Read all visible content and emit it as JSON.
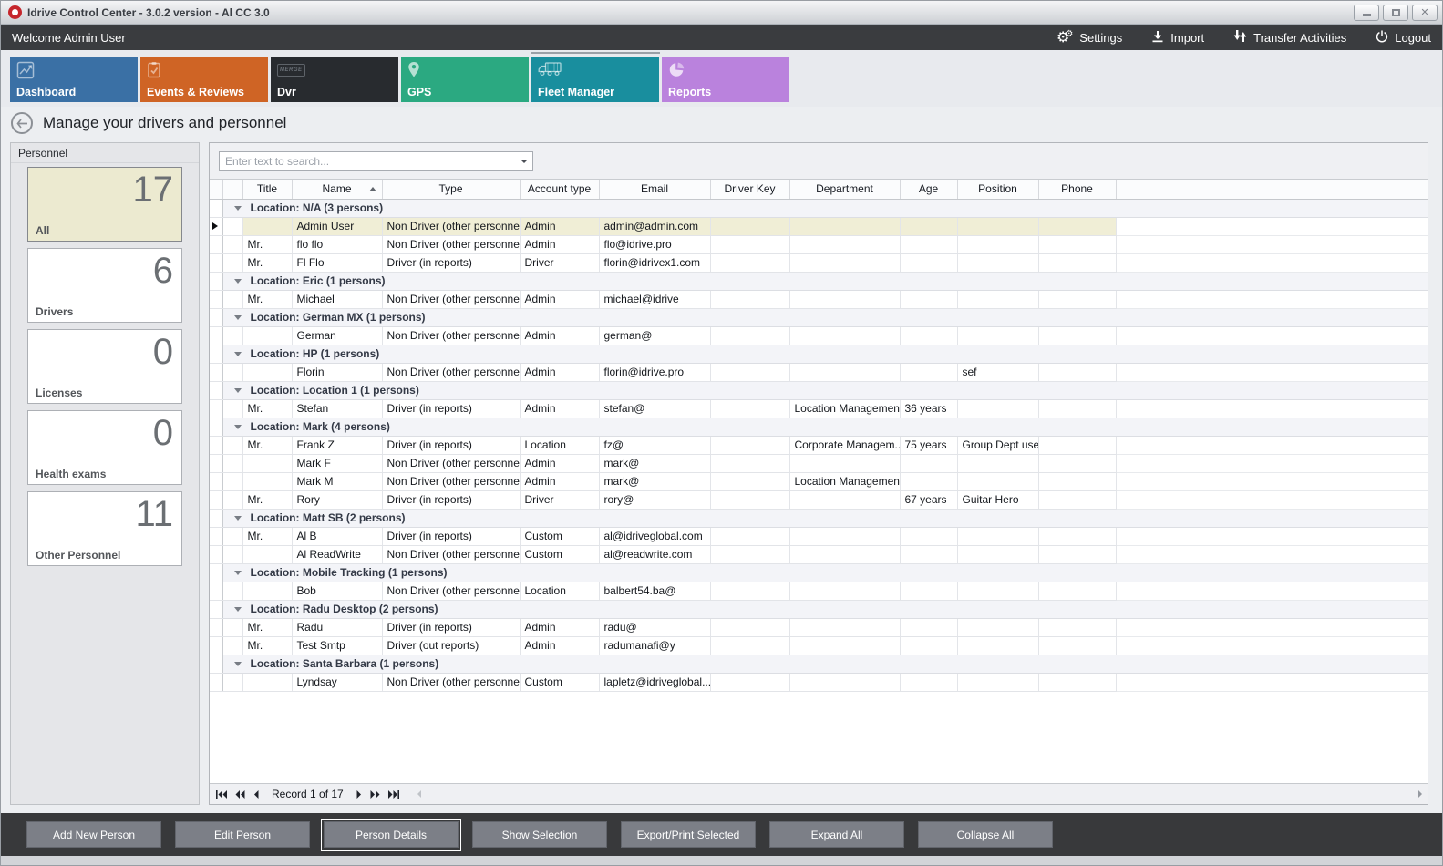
{
  "window": {
    "title": "Idrive Control Center - 3.0.2 version - Al CC 3.0",
    "controls": {
      "minimize": "minimize",
      "maximize": "maximize",
      "close": "✕"
    }
  },
  "topbar": {
    "welcome": "Welcome Admin User",
    "actions": [
      {
        "label": "Settings",
        "icon": "gears-icon"
      },
      {
        "label": "Import",
        "icon": "import-icon"
      },
      {
        "label": "Transfer Activities",
        "icon": "transfer-icon"
      },
      {
        "label": "Logout",
        "icon": "power-icon"
      }
    ]
  },
  "tabs": [
    {
      "label": "Dashboard",
      "icon": "chart-icon",
      "color": "#3a70a5",
      "selected": false
    },
    {
      "label": "Events & Reviews",
      "icon": "clipboard-icon",
      "color": "#cf6425",
      "selected": false
    },
    {
      "label": "Dvr",
      "icon": "merge-icon",
      "color": "#282b2f",
      "selected": false
    },
    {
      "label": "GPS",
      "icon": "pin-icon",
      "color": "#2ba981",
      "selected": false
    },
    {
      "label": "Fleet Manager",
      "icon": "trucks-icon",
      "color": "#198e9e",
      "selected": true
    },
    {
      "label": "Reports",
      "icon": "pie-icon",
      "color": "#ba82dd",
      "selected": false
    }
  ],
  "page": {
    "title": "Manage your drivers and personnel"
  },
  "sidebar": {
    "title": "Personnel",
    "cards": [
      {
        "label": "All",
        "count": "17",
        "selected": true
      },
      {
        "label": "Drivers",
        "count": "6",
        "selected": false
      },
      {
        "label": "Licenses",
        "count": "0",
        "selected": false
      },
      {
        "label": "Health exams",
        "count": "0",
        "selected": false
      },
      {
        "label": "Other Personnel",
        "count": "11",
        "selected": false
      }
    ]
  },
  "grid": {
    "search_placeholder": "Enter text to search...",
    "columns": [
      "Title",
      "Name",
      "Type",
      "Account type",
      "Email",
      "Driver Key",
      "Department",
      "Age",
      "Position",
      "Phone"
    ],
    "sort": {
      "column": "Name",
      "direction": "asc"
    },
    "groups": [
      {
        "label": "Location: N/A (3 persons)",
        "rows": [
          {
            "selected": true,
            "cells": [
              "",
              "Admin User",
              "Non Driver (other personnel)",
              "Admin",
              "admin@admin.com",
              "",
              "",
              "",
              "",
              ""
            ]
          },
          {
            "selected": false,
            "cells": [
              "Mr.",
              "flo flo",
              "Non Driver (other personnel)",
              "Admin",
              "flo@idrive.pro",
              "",
              "",
              "",
              "",
              ""
            ]
          },
          {
            "selected": false,
            "cells": [
              "Mr.",
              "Fl Flo",
              "Driver (in reports)",
              "Driver",
              "florin@idrivex1.com",
              "",
              "",
              "",
              "",
              ""
            ]
          }
        ]
      },
      {
        "label": "Location: Eric (1 persons)",
        "rows": [
          {
            "selected": false,
            "cells": [
              "Mr.",
              "Michael",
              "Non Driver (other personnel)",
              "Admin",
              "michael@idrive",
              "",
              "",
              "",
              "",
              ""
            ]
          }
        ]
      },
      {
        "label": "Location: German MX (1 persons)",
        "rows": [
          {
            "selected": false,
            "cells": [
              "",
              "German",
              "Non Driver (other personnel)",
              "Admin",
              "german@",
              "",
              "",
              "",
              "",
              ""
            ]
          }
        ]
      },
      {
        "label": "Location: HP (1 persons)",
        "rows": [
          {
            "selected": false,
            "cells": [
              "",
              "Florin",
              "Non Driver (other personnel)",
              "Admin",
              "florin@idrive.pro",
              "",
              "",
              "",
              "sef",
              ""
            ]
          }
        ]
      },
      {
        "label": "Location: Location 1 (1 persons)",
        "rows": [
          {
            "selected": false,
            "cells": [
              "Mr.",
              "Stefan",
              "Driver (in reports)",
              "Admin",
              "stefan@",
              "",
              "Location Management",
              "36 years",
              "",
              ""
            ]
          }
        ]
      },
      {
        "label": "Location: Mark (4 persons)",
        "rows": [
          {
            "selected": false,
            "cells": [
              "Mr.",
              "Frank Z",
              "Driver (in reports)",
              "Location",
              "fz@",
              "",
              "Corporate Managem...",
              "75 years",
              "Group Dept user",
              ""
            ]
          },
          {
            "selected": false,
            "cells": [
              "",
              "Mark F",
              "Non Driver (other personnel)",
              "Admin",
              "mark@",
              "",
              "",
              "",
              "",
              ""
            ]
          },
          {
            "selected": false,
            "cells": [
              "",
              "Mark M",
              "Non Driver (other personnel)",
              "Admin",
              "mark@",
              "",
              "Location Management",
              "",
              "",
              ""
            ]
          },
          {
            "selected": false,
            "cells": [
              "Mr.",
              "Rory",
              "Driver (in reports)",
              "Driver",
              "rory@",
              "",
              "",
              "67 years",
              "Guitar Hero",
              ""
            ]
          }
        ]
      },
      {
        "label": "Location: Matt SB (2 persons)",
        "rows": [
          {
            "selected": false,
            "cells": [
              "Mr.",
              "Al B",
              "Driver (in reports)",
              "Custom",
              "al@idriveglobal.com",
              "",
              "",
              "",
              "",
              ""
            ]
          },
          {
            "selected": false,
            "cells": [
              "",
              "Al ReadWrite",
              "Non Driver (other personnel)",
              "Custom",
              "al@readwrite.com",
              "",
              "",
              "",
              "",
              ""
            ]
          }
        ]
      },
      {
        "label": "Location: Mobile Tracking (1 persons)",
        "rows": [
          {
            "selected": false,
            "cells": [
              "",
              "Bob",
              "Non Driver (other personnel)",
              "Location",
              "balbert54.ba@",
              "",
              "",
              "",
              "",
              ""
            ]
          }
        ]
      },
      {
        "label": "Location: Radu Desktop (2 persons)",
        "rows": [
          {
            "selected": false,
            "cells": [
              "Mr.",
              "Radu",
              "Driver (in reports)",
              "Admin",
              "radu@",
              "",
              "",
              "",
              "",
              ""
            ]
          },
          {
            "selected": false,
            "cells": [
              "Mr.",
              "Test Smtp",
              "Driver (out reports)",
              "Admin",
              "radumanafi@y",
              "",
              "",
              "",
              "",
              ""
            ]
          }
        ]
      },
      {
        "label": "Location: Santa Barbara (1 persons)",
        "rows": [
          {
            "selected": false,
            "cells": [
              "",
              "Lyndsay",
              "Non Driver (other personnel)",
              "Custom",
              "lapletz@idriveglobal....",
              "",
              "",
              "",
              "",
              ""
            ]
          }
        ]
      }
    ],
    "pager": {
      "text": "Record 1 of 17"
    }
  },
  "footer": {
    "buttons": [
      {
        "label": "Add New Person",
        "focused": false
      },
      {
        "label": "Edit Person",
        "focused": false
      },
      {
        "label": "Person Details",
        "focused": true
      },
      {
        "label": "Show Selection",
        "focused": false
      },
      {
        "label": "Export/Print Selected",
        "focused": false
      },
      {
        "label": "Expand All",
        "focused": false
      },
      {
        "label": "Collapse All",
        "focused": false
      }
    ]
  }
}
